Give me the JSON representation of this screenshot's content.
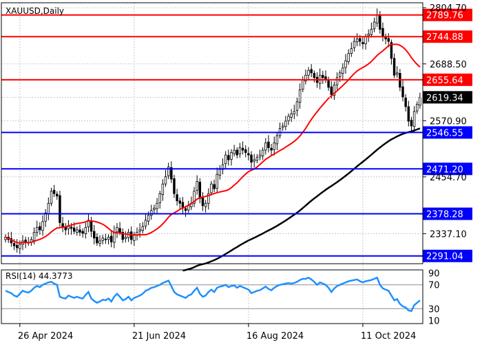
{
  "chart_data": {
    "type": "candlestick",
    "symbol_label": "XAUUSD,Daily",
    "price_axis": {
      "ylim": [
        2275,
        2815
      ],
      "tick_labels": [
        "2804.70",
        "2688.50",
        "2570.90",
        "2454.70",
        "2337.10"
      ],
      "tick_values": [
        2804.7,
        2688.5,
        2570.9,
        2454.7,
        2337.1
      ]
    },
    "current_price": {
      "label": "2619.34",
      "value": 2619.34,
      "color": "#000000"
    },
    "resistance_levels": [
      {
        "label": "2789.76",
        "value": 2789.76,
        "color": "#ff0000"
      },
      {
        "label": "2744.88",
        "value": 2744.88,
        "color": "#ff0000"
      },
      {
        "label": "2655.64",
        "value": 2655.64,
        "color": "#ff0000"
      }
    ],
    "support_levels": [
      {
        "label": "2546.55",
        "value": 2546.55,
        "color": "#0000ff"
      },
      {
        "label": "2471.20",
        "value": 2471.2,
        "color": "#0000ff"
      },
      {
        "label": "2378.28",
        "value": 2378.28,
        "color": "#0000ff"
      },
      {
        "label": "2291.04",
        "value": 2291.04,
        "color": "#0000ff"
      }
    ],
    "x_axis": {
      "date_labels": [
        "26 Apr 2024",
        "21 Jun 2024",
        "16 Aug 2024",
        "11 Oct 2024"
      ],
      "date_label_bar_index": [
        5,
        45,
        85,
        125
      ]
    },
    "closes": [
      2330,
      2325,
      2318,
      2312,
      2308,
      2315,
      2322,
      2320,
      2318,
      2325,
      2340,
      2350,
      2345,
      2362,
      2380,
      2400,
      2425,
      2420,
      2415,
      2360,
      2350,
      2345,
      2352,
      2348,
      2342,
      2345,
      2340,
      2338,
      2350,
      2365,
      2342,
      2328,
      2318,
      2322,
      2328,
      2325,
      2330,
      2320,
      2340,
      2350,
      2340,
      2325,
      2330,
      2340,
      2325,
      2335,
      2340,
      2345,
      2352,
      2365,
      2375,
      2385,
      2390,
      2400,
      2420,
      2440,
      2455,
      2475,
      2450,
      2420,
      2405,
      2400,
      2390,
      2385,
      2395,
      2400,
      2425,
      2445,
      2410,
      2395,
      2400,
      2420,
      2440,
      2430,
      2460,
      2470,
      2480,
      2500,
      2490,
      2505,
      2510,
      2500,
      2515,
      2510,
      2505,
      2500,
      2485,
      2490,
      2495,
      2500,
      2510,
      2525,
      2515,
      2510,
      2525,
      2540,
      2555,
      2560,
      2570,
      2580,
      2585,
      2590,
      2610,
      2635,
      2655,
      2665,
      2675,
      2670,
      2660,
      2650,
      2665,
      2660,
      2655,
      2640,
      2625,
      2645,
      2660,
      2670,
      2680,
      2695,
      2710,
      2720,
      2735,
      2740,
      2735,
      2730,
      2745,
      2750,
      2760,
      2775,
      2790,
      2760,
      2745,
      2740,
      2735,
      2700,
      2665,
      2670,
      2640,
      2620,
      2600,
      2570,
      2560,
      2590,
      2605,
      2619
    ],
    "series": [
      {
        "type": "sma",
        "period": 20,
        "color": "#ff0000"
      },
      {
        "type": "sma",
        "period": 200,
        "color": "#000000"
      }
    ],
    "rsi": {
      "label": "RSI(14) 44.3773",
      "ylim": [
        5,
        95
      ],
      "tick_labels": [
        "90",
        "70",
        "30",
        "10"
      ],
      "tick_values": [
        90,
        70,
        30,
        10
      ],
      "levels": [
        70,
        30
      ],
      "line_color": "#1e90ff",
      "values": [
        60,
        58,
        56,
        52,
        50,
        55,
        60,
        58,
        57,
        60,
        65,
        68,
        66,
        70,
        72,
        74,
        75,
        72,
        70,
        50,
        48,
        47,
        52,
        50,
        48,
        50,
        48,
        47,
        53,
        58,
        47,
        43,
        40,
        42,
        45,
        44,
        47,
        42,
        50,
        55,
        50,
        44,
        46,
        50,
        44,
        48,
        50,
        52,
        55,
        60,
        62,
        65,
        66,
        68,
        70,
        73,
        75,
        77,
        68,
        58,
        54,
        52,
        50,
        48,
        52,
        54,
        60,
        65,
        55,
        50,
        52,
        58,
        62,
        58,
        65,
        67,
        68,
        70,
        66,
        68,
        69,
        65,
        68,
        66,
        64,
        62,
        56,
        58,
        60,
        61,
        64,
        67,
        63,
        61,
        65,
        68,
        70,
        71,
        72,
        73,
        72,
        73,
        75,
        78,
        80,
        80,
        82,
        79,
        75,
        70,
        74,
        72,
        70,
        65,
        58,
        64,
        68,
        70,
        72,
        74,
        76,
        77,
        78,
        79,
        76,
        74,
        76,
        77,
        78,
        80,
        82,
        70,
        64,
        62,
        60,
        52,
        44,
        46,
        38,
        34,
        32,
        27,
        26,
        36,
        40,
        44
      ]
    }
  }
}
